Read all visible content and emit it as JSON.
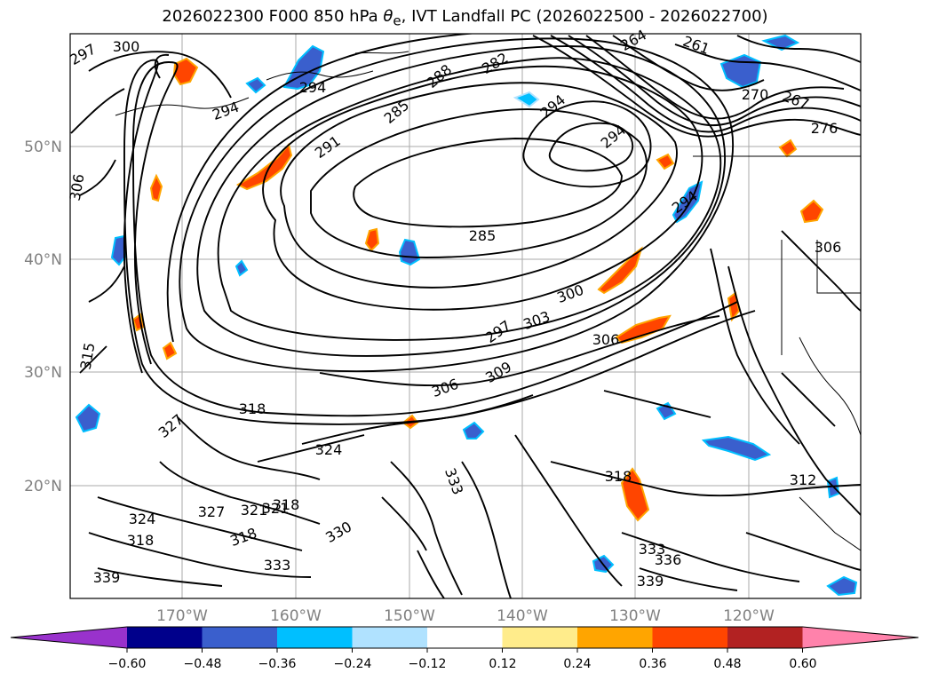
{
  "title": {
    "prefix": "2026022300 F000 850 hPa ",
    "symbol": "θ",
    "subscript": "e",
    "suffix": ", IVT Landfall PC (2026022500 - 2026022700)"
  },
  "map": {
    "lat_labels": [
      "50°N",
      "40°N",
      "30°N",
      "20°N"
    ],
    "lon_labels": [
      "170°W",
      "160°W",
      "150°W",
      "140°W",
      "130°W",
      "120°W"
    ],
    "contour_labels": [
      "297",
      "300",
      "294",
      "294",
      "291",
      "285",
      "288",
      "282",
      "294",
      "294",
      "264",
      "261",
      "270",
      "267",
      "276",
      "285",
      "294",
      "306",
      "309",
      "306",
      "303",
      "300",
      "297",
      "306",
      "315",
      "318",
      "324",
      "327",
      "321",
      "318",
      "324",
      "327",
      "321",
      "318",
      "330",
      "333",
      "333",
      "339",
      "318",
      "312",
      "336",
      "339",
      "333",
      "318",
      "306"
    ]
  },
  "colorbar": {
    "colors": [
      "#9932CC",
      "#00008B",
      "#3A5FCD",
      "#00BFFF",
      "#B0E2FF",
      "#FFFFFF",
      "#FFEC8B",
      "#FFA500",
      "#FF4500",
      "#B22222",
      "#FF82AB"
    ],
    "tick_labels": [
      "−0.60",
      "−0.48",
      "−0.36",
      "−0.24",
      "−0.12",
      "0.12",
      "0.24",
      "0.36",
      "0.48",
      "0.60"
    ]
  }
}
